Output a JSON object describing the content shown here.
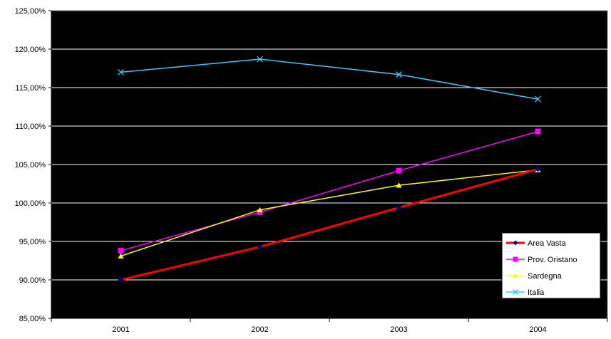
{
  "chart_data": {
    "type": "line",
    "categories": [
      "2001",
      "2002",
      "2003",
      "2004"
    ],
    "ylim": [
      0.85,
      1.25
    ],
    "yticks": [
      0.85,
      0.9,
      0.95,
      1.0,
      1.05,
      1.1,
      1.15,
      1.2,
      1.25
    ],
    "ytick_labels": [
      "85,00%",
      "90,00%",
      "95,00%",
      "100,00%",
      "105,00%",
      "110,00%",
      "115,00%",
      "120,00%",
      "125,00%"
    ],
    "grid": true,
    "plot_background": "#000000",
    "legend_position": "bottom-right",
    "series": [
      {
        "name": "Area Vasta",
        "values": [
          0.9,
          0.943,
          0.994,
          1.044
        ],
        "color": "#ff0000",
        "marker_color": "#000080",
        "marker": "diamond"
      },
      {
        "name": "Prov. Oristano",
        "values": [
          0.938,
          0.988,
          1.042,
          1.093
        ],
        "color": "#ff00ff",
        "marker_color": "#ff00ff",
        "marker": "square"
      },
      {
        "name": "Sardegna",
        "values": [
          0.931,
          0.991,
          1.023,
          1.043
        ],
        "color": "#ffff00",
        "marker_color": "#ffff00",
        "marker": "triangle"
      },
      {
        "name": "Italia",
        "values": [
          1.17,
          1.187,
          1.167,
          1.135
        ],
        "color": "#33ccff",
        "marker_color": "#33ccff",
        "marker": "x"
      }
    ]
  }
}
